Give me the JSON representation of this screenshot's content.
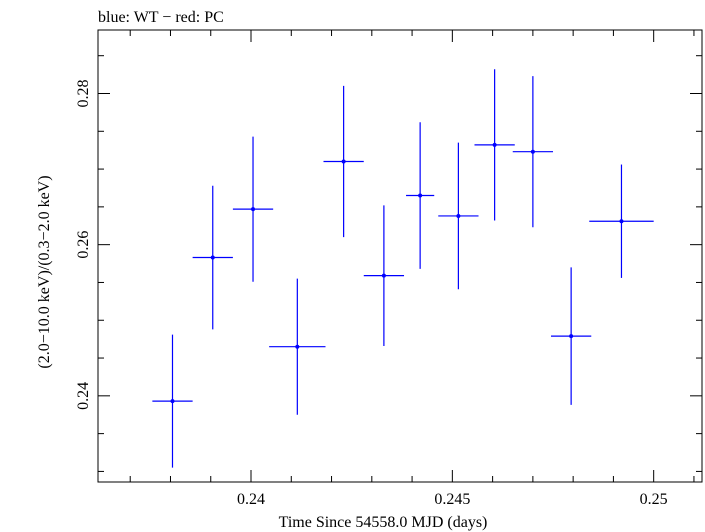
{
  "chart_data": {
    "type": "scatter",
    "title": "blue: WT − red: PC",
    "xlabel": "Time Since 54558.0 MJD (days)",
    "ylabel": "(2.0−10.0 keV)/(0.3−2.0 keV)",
    "xlim": [
      0.2362,
      0.2512
    ],
    "ylim": [
      0.2286,
      0.2884
    ],
    "x_ticks": [
      0.24,
      0.245,
      0.25
    ],
    "x_tick_labels": [
      "0.24",
      "0.245",
      "0.25"
    ],
    "y_ticks": [
      0.24,
      0.26,
      0.28
    ],
    "y_tick_labels": [
      "0.24",
      "0.26",
      "0.28"
    ],
    "grid": false,
    "series": [
      {
        "color": "#0000ff",
        "points": [
          {
            "x": 0.23805,
            "xerr": 0.0005,
            "y": 0.2393,
            "yerr": 0.0088
          },
          {
            "x": 0.23905,
            "xerr": 0.0005,
            "y": 0.2583,
            "yerr": 0.0095
          },
          {
            "x": 0.24005,
            "xerr": 0.0005,
            "y": 0.2647,
            "yerr": 0.0096
          },
          {
            "x": 0.24115,
            "xerr": 0.0007,
            "y": 0.2465,
            "yerr": 0.009
          },
          {
            "x": 0.2423,
            "xerr": 0.0005,
            "y": 0.271,
            "yerr": 0.01
          },
          {
            "x": 0.2433,
            "xerr": 0.0005,
            "y": 0.2559,
            "yerr": 0.0093
          },
          {
            "x": 0.2442,
            "xerr": 0.00035,
            "y": 0.2665,
            "yerr": 0.0097
          },
          {
            "x": 0.24515,
            "xerr": 0.0005,
            "y": 0.2638,
            "yerr": 0.0097
          },
          {
            "x": 0.24605,
            "xerr": 0.0005,
            "y": 0.2732,
            "yerr": 0.01
          },
          {
            "x": 0.247,
            "xerr": 0.0005,
            "y": 0.2723,
            "yerr": 0.01
          },
          {
            "x": 0.24795,
            "xerr": 0.0005,
            "y": 0.2479,
            "yerr": 0.0091
          },
          {
            "x": 0.2492,
            "xerr": 0.0008,
            "y": 0.2631,
            "yerr": 0.0075
          }
        ]
      }
    ]
  }
}
